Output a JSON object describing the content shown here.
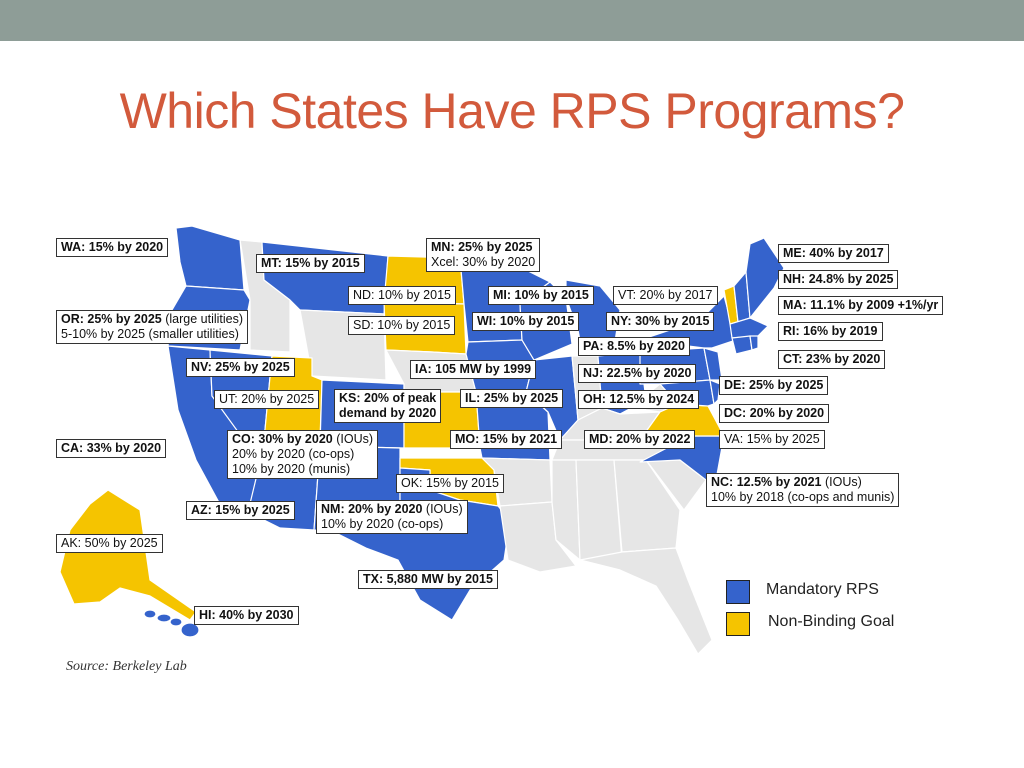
{
  "title": "Which States Have RPS Programs?",
  "source": "Source: Berkeley Lab",
  "colors": {
    "mandatory": "#3563cc",
    "nonbinding": "#f5c400",
    "none": "#e6e6e6",
    "title": "#d25a3c",
    "topbar": "#8e9d97"
  },
  "legend": [
    {
      "label": "Mandatory RPS",
      "color": "#3563cc"
    },
    {
      "label": "Non-Binding Goal",
      "color": "#f5c400"
    }
  ],
  "labels": {
    "wa": {
      "bold": "WA: 15% by 2020",
      "rest": ""
    },
    "mt": {
      "bold": "MT: 15% by 2015",
      "rest": ""
    },
    "mn": {
      "bold": "MN: 25% by 2025",
      "rest": "Xcel: 30% by 2020"
    },
    "me": {
      "bold": "ME: 40% by 2017",
      "rest": ""
    },
    "nh": {
      "bold": "NH: 24.8% by 2025",
      "rest": ""
    },
    "nd": {
      "bold": "",
      "rest": "ND: 10% by 2015"
    },
    "mi": {
      "bold": "MI: 10% by 2015",
      "rest": ""
    },
    "vt": {
      "bold": "",
      "rest": "VT: 20% by 2017"
    },
    "ma": {
      "bold": "MA: 11.1% by 2009 +1%/yr",
      "rest": ""
    },
    "or": {
      "bold": "OR: 25% by 2025",
      "rest": " (large utilities)",
      "line2": "5-10% by 2025 (smaller utilities)"
    },
    "sd": {
      "bold": "",
      "rest": "SD: 10% by 2015"
    },
    "wi": {
      "bold": "WI: 10% by 2015",
      "rest": ""
    },
    "ny": {
      "bold": "NY: 30% by 2015",
      "rest": ""
    },
    "ri": {
      "bold": "RI: 16% by 2019",
      "rest": ""
    },
    "pa": {
      "bold": "PA: 8.5% by 2020",
      "rest": ""
    },
    "ct": {
      "bold": "CT: 23% by 2020",
      "rest": ""
    },
    "nv": {
      "bold": "NV: 25% by 2025",
      "rest": ""
    },
    "ia": {
      "bold": "IA: 105 MW by 1999",
      "rest": ""
    },
    "nj": {
      "bold": "NJ: 22.5% by 2020",
      "rest": ""
    },
    "de": {
      "bold": "DE: 25% by 2025",
      "rest": ""
    },
    "ut": {
      "bold": "",
      "rest": "UT: 20% by 2025"
    },
    "ks": {
      "bold": "KS: 20% of peak",
      "line2": "demand by 2020"
    },
    "il": {
      "bold": "IL: 25% by 2025",
      "rest": ""
    },
    "oh": {
      "bold": "OH: 12.5% by 2024",
      "rest": ""
    },
    "dc": {
      "bold": "DC: 20% by 2020",
      "rest": ""
    },
    "co": {
      "bold": "CO: 30% by 2020",
      "rest": " (IOUs)",
      "line2": "20% by 2020 (co-ops)",
      "line3": "10% by 2020 (munis)"
    },
    "mo": {
      "bold": "MO: 15% by 2021",
      "rest": ""
    },
    "md": {
      "bold": "MD: 20% by 2022",
      "rest": ""
    },
    "va": {
      "bold": "",
      "rest": "VA: 15% by 2025"
    },
    "ca": {
      "bold": "CA: 33% by 2020",
      "rest": ""
    },
    "ok": {
      "bold": "",
      "rest": "OK: 15% by 2015"
    },
    "nc": {
      "bold": "NC: 12.5% by 2021",
      "rest": " (IOUs)",
      "line2": "10% by 2018 (co-ops and munis)"
    },
    "az": {
      "bold": "AZ: 15% by 2025",
      "rest": ""
    },
    "nm": {
      "bold": "NM: 20% by 2020",
      "rest": " (IOUs)",
      "line2": "10% by 2020 (co-ops)"
    },
    "ak": {
      "bold": "",
      "rest": "AK: 50% by 2025"
    },
    "tx": {
      "bold": "TX: 5,880 MW by 2015",
      "rest": ""
    },
    "hi": {
      "bold": "HI: 40% by 2030",
      "rest": ""
    }
  }
}
